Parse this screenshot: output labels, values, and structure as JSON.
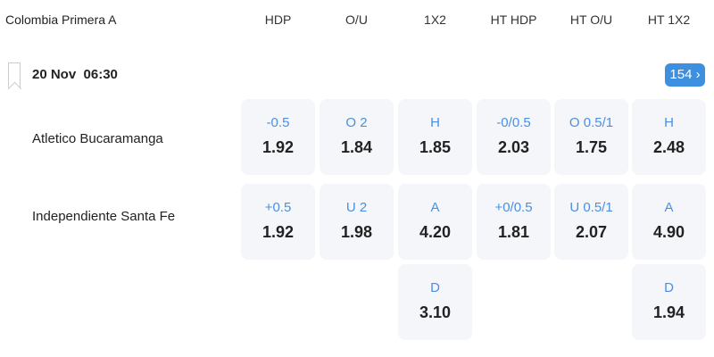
{
  "league": "Colombia Primera A",
  "columns": [
    "HDP",
    "O/U",
    "1X2",
    "HT HDP",
    "HT O/U",
    "HT 1X2"
  ],
  "match": {
    "datetime": "20 Nov  06:30",
    "more_count": "154 ›",
    "home": "Atletico Bucaramanga",
    "away": "Independiente Santa Fe"
  },
  "rows": [
    [
      {
        "l": "-0.5",
        "o": "1.92"
      },
      {
        "l": "O 2",
        "o": "1.84"
      },
      {
        "l": "H",
        "o": "1.85"
      },
      {
        "l": "-0/0.5",
        "o": "2.03"
      },
      {
        "l": "O 0.5/1",
        "o": "1.75"
      },
      {
        "l": "H",
        "o": "2.48"
      }
    ],
    [
      {
        "l": "+0.5",
        "o": "1.92"
      },
      {
        "l": "U 2",
        "o": "1.98"
      },
      {
        "l": "A",
        "o": "4.20"
      },
      {
        "l": "+0/0.5",
        "o": "1.81"
      },
      {
        "l": "U 0.5/1",
        "o": "2.07"
      },
      {
        "l": "A",
        "o": "4.90"
      }
    ],
    [
      null,
      null,
      {
        "l": "D",
        "o": "3.10"
      },
      null,
      null,
      {
        "l": "D",
        "o": "1.94"
      }
    ]
  ],
  "colors": {
    "accent": "#4a90e2",
    "badge": "#3d8fe0",
    "cell_bg": "#f4f6f9"
  }
}
